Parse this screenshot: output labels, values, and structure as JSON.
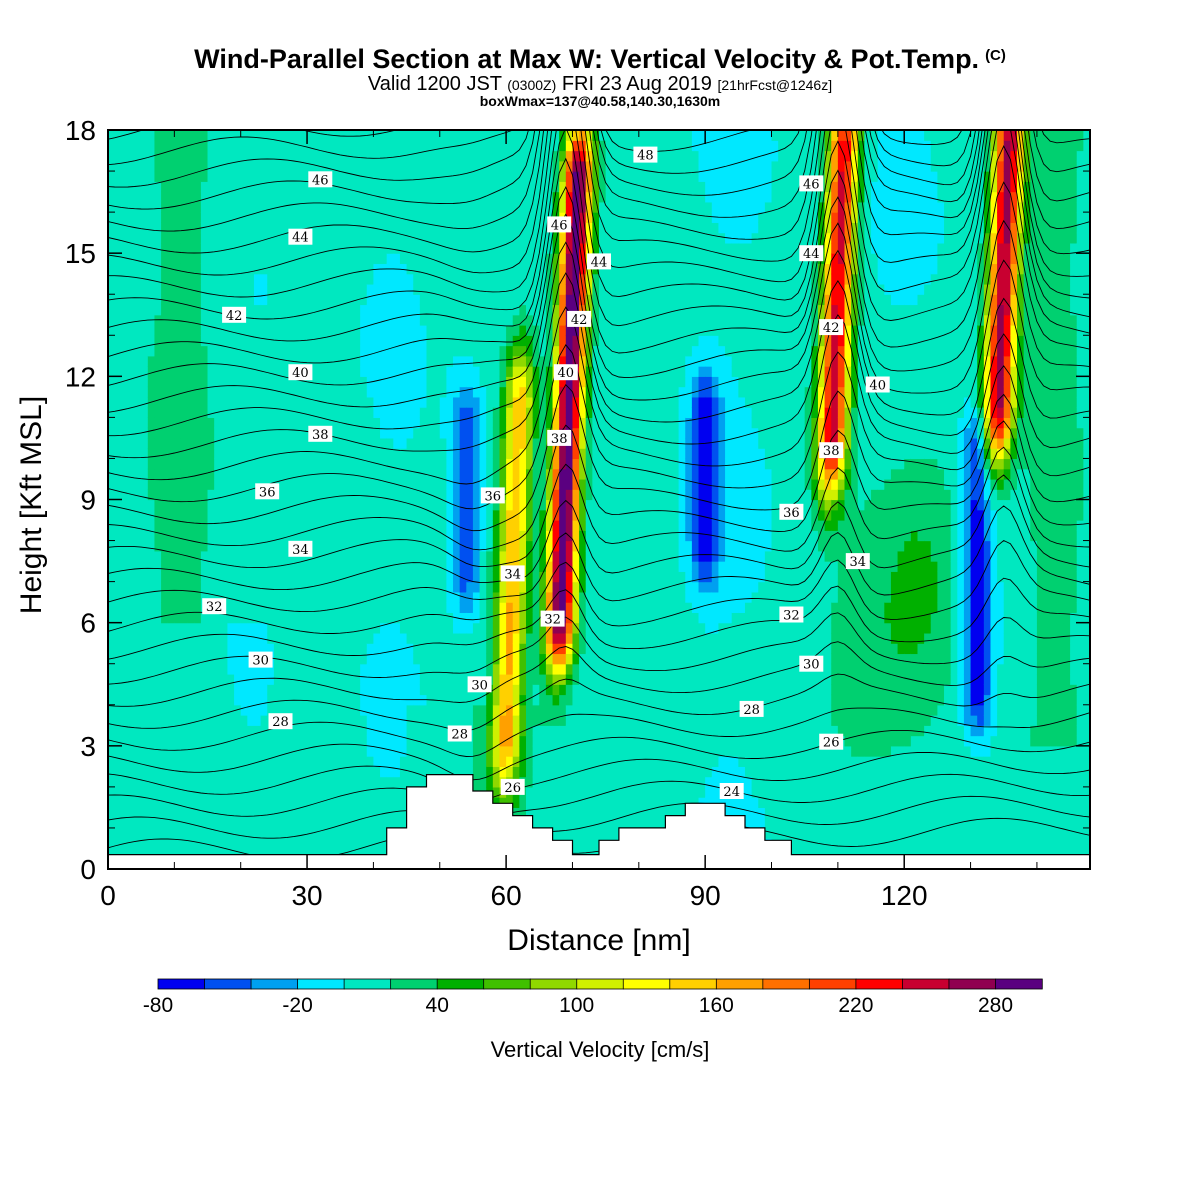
{
  "title": "Wind-Parallel Section at Max W: Vertical Velocity & Pot.Temp.",
  "title_mark": "(C)",
  "subtitle_main": "Valid 1200 JST ",
  "subtitle_utc": "(0300Z)",
  "subtitle_date": " FRI 23 Aug 2019 ",
  "subtitle_fcst": "[21hrFcst@1246z]",
  "subtitle2": "boxWmax=137@40.58,140.30,1630m",
  "chart_data": {
    "type": "heatmap",
    "xlabel": "Distance [nm]",
    "ylabel": "Height [Kft MSL]",
    "xlim": [
      0,
      148
    ],
    "ylim": [
      0,
      18
    ],
    "x_ticks": [
      "0",
      "30",
      "60",
      "90",
      "120"
    ],
    "y_ticks": [
      "0",
      "3",
      "6",
      "9",
      "12",
      "15",
      "18"
    ],
    "colorbar": {
      "label": "Vertical Velocity [cm/s]",
      "tick_labels": [
        "-80",
        "-20",
        "40",
        "100",
        "160",
        "220",
        "280"
      ],
      "levels": [
        -80,
        -60,
        -40,
        -20,
        0,
        20,
        40,
        60,
        80,
        100,
        120,
        140,
        160,
        180,
        200,
        220,
        240,
        260,
        280,
        300,
        320
      ],
      "colors": [
        "#0000f0",
        "#0050f0",
        "#00a0f0",
        "#00e8ff",
        "#00e8c0",
        "#00d070",
        "#00b000",
        "#40c000",
        "#90d800",
        "#d0f000",
        "#ffff00",
        "#ffd000",
        "#ffa000",
        "#ff7000",
        "#ff4000",
        "#ff0000",
        "#c80030",
        "#900050",
        "#5a0080"
      ]
    },
    "updrafts": [
      {
        "x": 61,
        "y0": 2.5,
        "y1": 12,
        "peak": 150
      },
      {
        "x": 69.5,
        "y0": 5,
        "y1": 18,
        "peak": 300
      },
      {
        "x": 110,
        "y0": 10,
        "y1": 18,
        "peak": 240
      },
      {
        "x": 135,
        "y0": 11,
        "y1": 18,
        "peak": 260
      }
    ],
    "downdrafts": [
      {
        "x": 54,
        "y0": 6,
        "y1": 12,
        "peak": -60
      },
      {
        "x": 90,
        "y0": 7,
        "y1": 12,
        "peak": -80
      },
      {
        "x": 131,
        "y0": 2.5,
        "y1": 12,
        "peak": -80
      }
    ],
    "terrain": [
      [
        0,
        0.35
      ],
      [
        42,
        0.35
      ],
      [
        42,
        1.0
      ],
      [
        45,
        1.0
      ],
      [
        45,
        2.0
      ],
      [
        48,
        2.0
      ],
      [
        48,
        2.3
      ],
      [
        55,
        2.3
      ],
      [
        55,
        1.9
      ],
      [
        58,
        1.9
      ],
      [
        58,
        1.6
      ],
      [
        61,
        1.6
      ],
      [
        61,
        1.3
      ],
      [
        64,
        1.3
      ],
      [
        64,
        1.0
      ],
      [
        67,
        1.0
      ],
      [
        67,
        0.7
      ],
      [
        70,
        0.7
      ],
      [
        70,
        0.35
      ],
      [
        74,
        0.35
      ],
      [
        74,
        0.7
      ],
      [
        77,
        0.7
      ],
      [
        77,
        1.0
      ],
      [
        84,
        1.0
      ],
      [
        84,
        1.3
      ],
      [
        87,
        1.3
      ],
      [
        87,
        1.6
      ],
      [
        93,
        1.6
      ],
      [
        93,
        1.3
      ],
      [
        96,
        1.3
      ],
      [
        96,
        1.0
      ],
      [
        99,
        1.0
      ],
      [
        99,
        0.7
      ],
      [
        103,
        0.7
      ],
      [
        103,
        0.35
      ],
      [
        148,
        0.35
      ]
    ],
    "theta_contours": {
      "labels": [
        {
          "text": "46",
          "x": 32,
          "y": 16.8
        },
        {
          "text": "44",
          "x": 29,
          "y": 15.4
        },
        {
          "text": "42",
          "x": 19,
          "y": 13.5
        },
        {
          "text": "40",
          "x": 29,
          "y": 12.1
        },
        {
          "text": "38",
          "x": 32,
          "y": 10.6
        },
        {
          "text": "36",
          "x": 24,
          "y": 9.2
        },
        {
          "text": "34",
          "x": 29,
          "y": 7.8
        },
        {
          "text": "32",
          "x": 16,
          "y": 6.4
        },
        {
          "text": "30",
          "x": 23,
          "y": 5.1
        },
        {
          "text": "28",
          "x": 26,
          "y": 3.6
        },
        {
          "text": "48",
          "x": 81,
          "y": 17.4
        },
        {
          "text": "46",
          "x": 68,
          "y": 15.7
        },
        {
          "text": "44",
          "x": 74,
          "y": 14.8
        },
        {
          "text": "42",
          "x": 71,
          "y": 13.4
        },
        {
          "text": "40",
          "x": 69,
          "y": 12.1
        },
        {
          "text": "38",
          "x": 68,
          "y": 10.5
        },
        {
          "text": "36",
          "x": 58,
          "y": 9.1
        },
        {
          "text": "34",
          "x": 61,
          "y": 7.2
        },
        {
          "text": "32",
          "x": 67,
          "y": 6.1
        },
        {
          "text": "30",
          "x": 56,
          "y": 4.5
        },
        {
          "text": "28",
          "x": 53,
          "y": 3.3
        },
        {
          "text": "26",
          "x": 61,
          "y": 2.0
        },
        {
          "text": "46",
          "x": 106,
          "y": 16.7
        },
        {
          "text": "44",
          "x": 106,
          "y": 15.0
        },
        {
          "text": "42",
          "x": 109,
          "y": 13.2
        },
        {
          "text": "40",
          "x": 116,
          "y": 11.8
        },
        {
          "text": "38",
          "x": 109,
          "y": 10.2
        },
        {
          "text": "36",
          "x": 103,
          "y": 8.7
        },
        {
          "text": "34",
          "x": 113,
          "y": 7.5
        },
        {
          "text": "32",
          "x": 103,
          "y": 6.2
        },
        {
          "text": "30",
          "x": 106,
          "y": 5.0
        },
        {
          "text": "28",
          "x": 97,
          "y": 3.9
        },
        {
          "text": "26",
          "x": 109,
          "y": 3.1
        },
        {
          "text": "24",
          "x": 94,
          "y": 1.9
        }
      ]
    }
  }
}
